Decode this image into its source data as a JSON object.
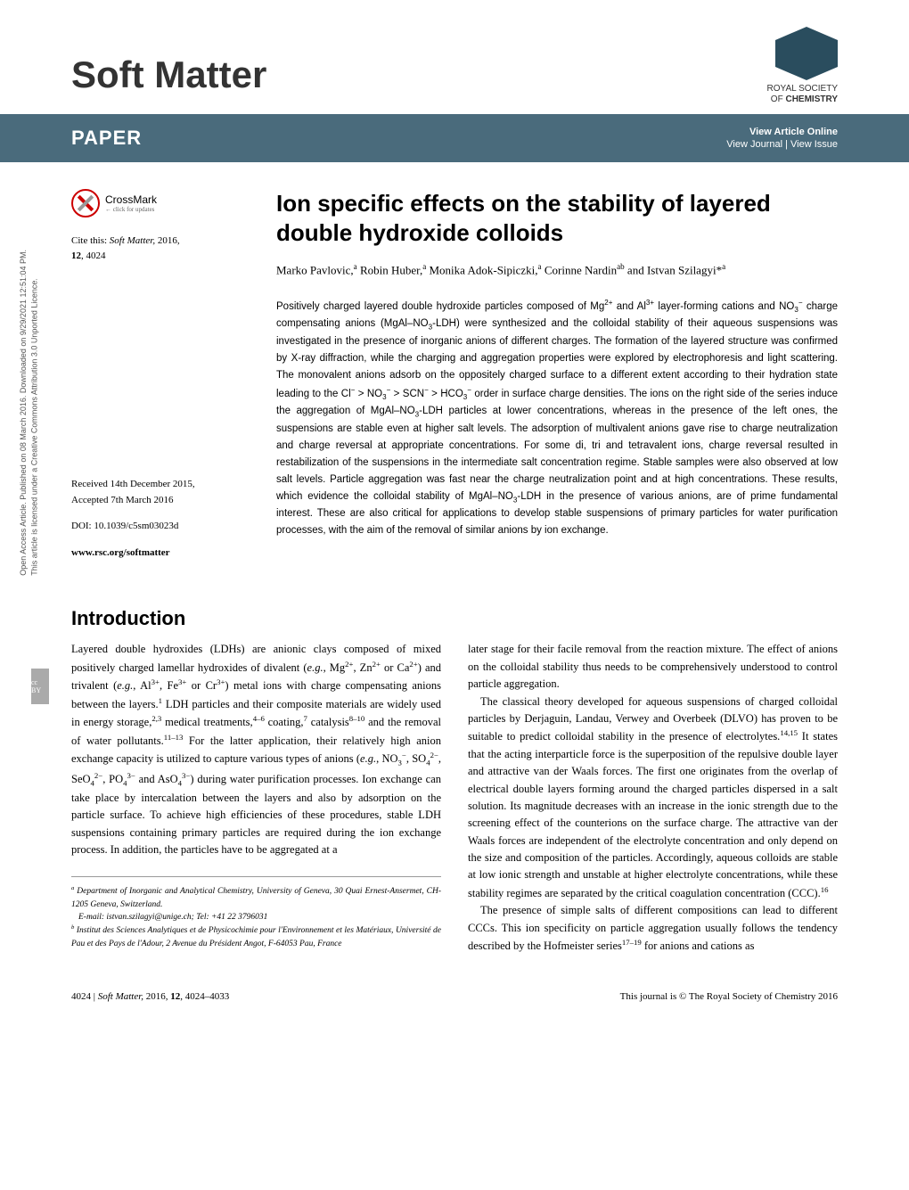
{
  "colors": {
    "bar_bg": "#4a6b7c",
    "rsc_hex": "#2a4d5e",
    "text": "#000000"
  },
  "journal": {
    "name": "Soft Matter"
  },
  "rsc": {
    "line1": "ROYAL SOCIETY",
    "line2": "OF CHEMISTRY"
  },
  "bar": {
    "label": "PAPER",
    "view_online": "View Article Online",
    "view_journal_issue": "View Journal | View Issue"
  },
  "sidebar": {
    "access": "Open Access Article. Published on 08 March 2016. Downloaded on 9/29/2021 12:51:04 PM.",
    "licence": "This article is licensed under a Creative Commons Attribution 3.0 Unported Licence."
  },
  "crossmark": {
    "label": "CrossMark",
    "sub": "← click for updates"
  },
  "cite": {
    "prefix": "Cite this: ",
    "journal": "Soft Matter,",
    "year": " 2016,",
    "vol_page": "12, 4024"
  },
  "meta": {
    "received": "Received 14th December 2015,",
    "accepted": "Accepted 7th March 2016",
    "doi": "DOI: 10.1039/c5sm03023d",
    "url": "www.rsc.org/softmatter"
  },
  "article": {
    "title": "Ion specific effects on the stability of layered double hydroxide colloids",
    "authors_html": "Marko Pavlovic,<sup>a</sup> Robin Huber,<sup>a</sup> Monika Adok-Sipiczki,<sup>a</sup> Corinne Nardin<sup>ab</sup> and Istvan Szilagyi*<sup>a</sup>",
    "abstract_html": "Positively charged layered double hydroxide particles composed of Mg<sup>2+</sup> and Al<sup>3+</sup> layer-forming cations and NO<sub>3</sub><sup>−</sup> charge compensating anions (MgAl–NO<sub>3</sub>-LDH) were synthesized and the colloidal stability of their aqueous suspensions was investigated in the presence of inorganic anions of different charges. The formation of the layered structure was confirmed by X-ray diffraction, while the charging and aggregation properties were explored by electrophoresis and light scattering. The monovalent anions adsorb on the oppositely charged surface to a different extent according to their hydration state leading to the Cl<sup>−</sup> &gt; NO<sub>3</sub><sup>−</sup> &gt; SCN<sup>−</sup> &gt; HCO<sub>3</sub><sup>−</sup> order in surface charge densities. The ions on the right side of the series induce the aggregation of MgAl–NO<sub>3</sub>-LDH particles at lower concentrations, whereas in the presence of the left ones, the suspensions are stable even at higher salt levels. The adsorption of multivalent anions gave rise to charge neutralization and charge reversal at appropriate concentrations. For some di, tri and tetravalent ions, charge reversal resulted in restabilization of the suspensions in the intermediate salt concentration regime. Stable samples were also observed at low salt levels. Particle aggregation was fast near the charge neutralization point and at high concentrations. These results, which evidence the colloidal stability of MgAl–NO<sub>3</sub>-LDH in the presence of various anions, are of prime fundamental interest. These are also critical for applications to develop stable suspensions of primary particles for water purification processes, with the aim of the removal of similar anions by ion exchange."
  },
  "intro": {
    "heading": "Introduction",
    "p1_html": "Layered double hydroxides (LDHs) are anionic clays composed of mixed positively charged lamellar hydroxides of divalent (<i>e.g.</i>, Mg<sup>2+</sup>, Zn<sup>2+</sup> or Ca<sup>2+</sup>) and trivalent (<i>e.g.</i>, Al<sup>3+</sup>, Fe<sup>3+</sup> or Cr<sup>3+</sup>) metal ions with charge compensating anions between the layers.<sup>1</sup> LDH particles and their composite materials are widely used in energy storage,<sup>2,3</sup> medical treatments,<sup>4–6</sup> coating,<sup>7</sup> catalysis<sup>8–10</sup> and the removal of water pollutants.<sup>11–13</sup> For the latter application, their relatively high anion exchange capacity is utilized to capture various types of anions (<i>e.g.</i>, NO<sub>3</sub><sup>−</sup>, SO<sub>4</sub><sup>2−</sup>, SeO<sub>4</sub><sup>2−</sup>, PO<sub>4</sub><sup>3−</sup> and AsO<sub>4</sub><sup>3−</sup>) during water purification processes. Ion exchange can take place by intercalation between the layers and also by adsorption on the particle surface. To achieve high efficiencies of these procedures, stable LDH suspensions containing primary particles are required during the ion exchange process. In addition, the particles have to be aggregated at a",
    "p2_html": "later stage for their facile removal from the reaction mixture. The effect of anions on the colloidal stability thus needs to be comprehensively understood to control particle aggregation.",
    "p3_html": "The classical theory developed for aqueous suspensions of charged colloidal particles by Derjaguin, Landau, Verwey and Overbeek (DLVO) has proven to be suitable to predict colloidal stability in the presence of electrolytes.<sup>14,15</sup> It states that the acting interparticle force is the superposition of the repulsive double layer and attractive van der Waals forces. The first one originates from the overlap of electrical double layers forming around the charged particles dispersed in a salt solution. Its magnitude decreases with an increase in the ionic strength due to the screening effect of the counterions on the surface charge. The attractive van der Waals forces are independent of the electrolyte concentration and only depend on the size and composition of the particles. Accordingly, aqueous colloids are stable at low ionic strength and unstable at higher electrolyte concentrations, while these stability regimes are separated by the critical coagulation concentration (CCC).<sup>16</sup>",
    "p4_html": "The presence of simple salts of different compositions can lead to different CCCs. This ion specificity on particle aggregation usually follows the tendency described by the Hofmeister series<sup>17–19</sup> for anions and cations as"
  },
  "affiliations": {
    "a": "Department of Inorganic and Analytical Chemistry, University of Geneva, 30 Quai Ernest-Ansermet, CH-1205 Geneva, Switzerland.",
    "email": "E-mail: istvan.szilagyi@unige.ch; Tel: +41 22 3796031",
    "b": "Institut des Sciences Analytiques et de Physicochimie pour l'Environnement et les Matériaux, Université de Pau et des Pays de l'Adour, 2 Avenue du Président Angot, F-64053 Pau, France"
  },
  "footer": {
    "left_html": "4024 | <i>Soft Matter,</i> 2016, <b>12</b>, 4024–4033",
    "right": "This journal is © The Royal Society of Chemistry 2016"
  }
}
